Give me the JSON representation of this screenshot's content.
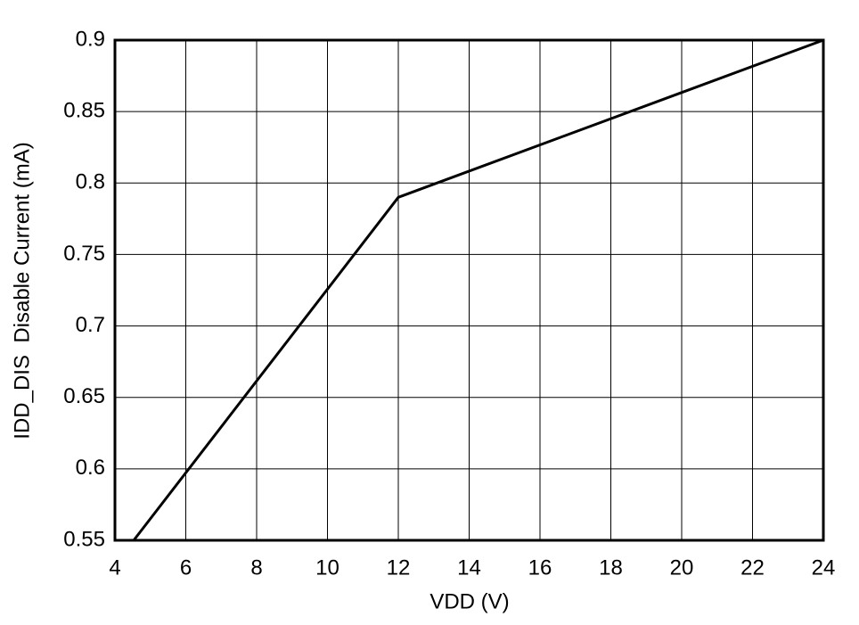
{
  "chart_data": {
    "type": "line",
    "x_label": "VDD (V)",
    "y_label": "IDD_DIS  Disable Current (mA)",
    "x": [
      4.53,
      12,
      24
    ],
    "series": [
      {
        "color": "#000000",
        "values": [
          0.55,
          0.79,
          0.9
        ]
      }
    ],
    "xlim": [
      4,
      24
    ],
    "xticks": [
      4,
      6,
      8,
      10,
      12,
      14,
      16,
      18,
      20,
      22,
      24
    ],
    "ylim": [
      0.55,
      0.9
    ],
    "yticks": [
      0.55,
      0.6,
      0.65,
      0.7,
      0.75,
      0.8,
      0.85,
      0.9
    ],
    "grid": true
  }
}
